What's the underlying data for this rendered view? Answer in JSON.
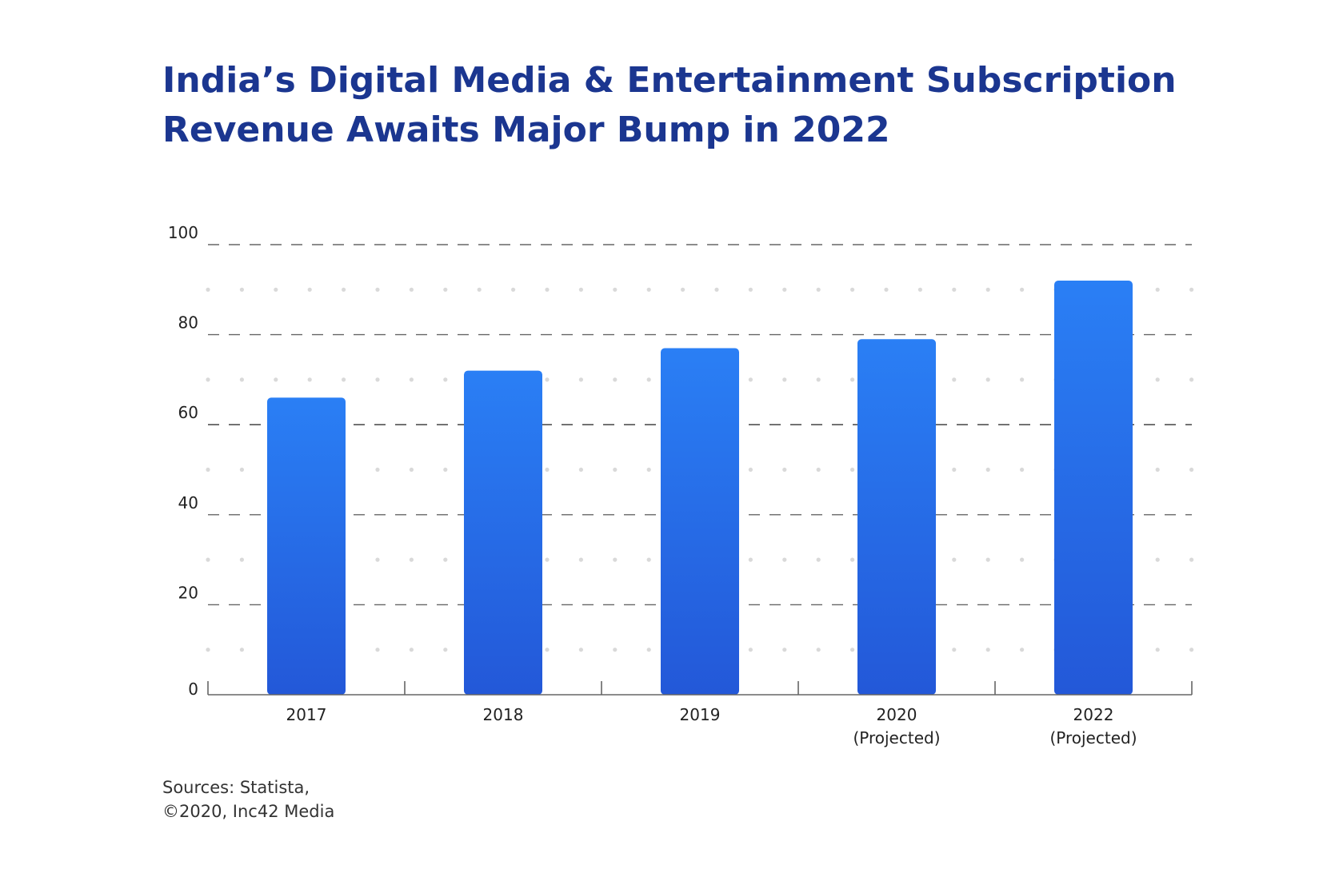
{
  "title_lines": [
    "India’s Digital Media & Entertainment Subscription",
    "Revenue Awaits Major Bump in 2022"
  ],
  "source_lines": [
    "Sources: Statista,",
    "©2020, Inc42 Media"
  ],
  "colors": {
    "title": "#1b3690",
    "bar_top": "#2a7ff5",
    "bar_bottom": "#2358d8",
    "grid": "#666666",
    "dot": "#d9d9d9",
    "text": "#222222"
  },
  "chart_data": {
    "type": "bar",
    "categories": [
      [
        "2017"
      ],
      [
        "2018"
      ],
      [
        "2019"
      ],
      [
        "2020",
        "(Projected)"
      ],
      [
        "2022",
        "(Projected)"
      ]
    ],
    "values": [
      66,
      72,
      77,
      79,
      92
    ],
    "yticks": [
      0,
      20,
      40,
      60,
      80,
      100
    ],
    "ylim": [
      0,
      100
    ],
    "grid": true,
    "title": "",
    "xlabel": "",
    "ylabel": ""
  }
}
